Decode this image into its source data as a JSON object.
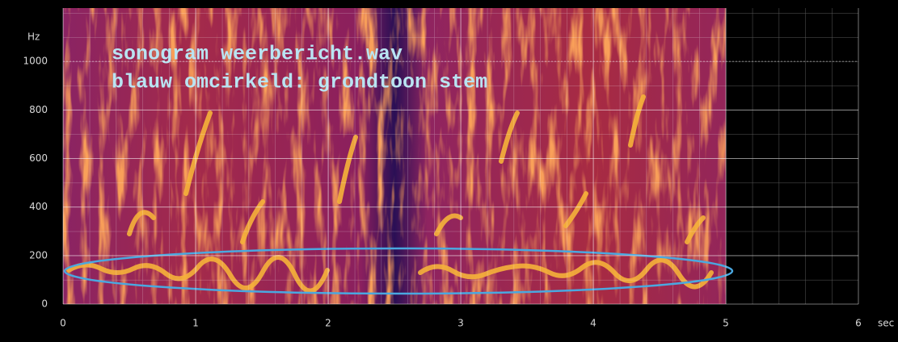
{
  "chart_data": {
    "type": "spectrogram",
    "annotations": [
      "sonogram weerbericht.wav",
      "blauw omcirkeld: grondtoon stem"
    ],
    "x_label": "sec",
    "y_label": "Hz",
    "xlim": [
      0,
      6
    ],
    "ylim": [
      0,
      1220
    ],
    "xticks": [
      0,
      1,
      2,
      3,
      4,
      5,
      6
    ],
    "yticks": [
      0,
      200,
      400,
      600,
      800,
      1000
    ],
    "grid": true
  }
}
